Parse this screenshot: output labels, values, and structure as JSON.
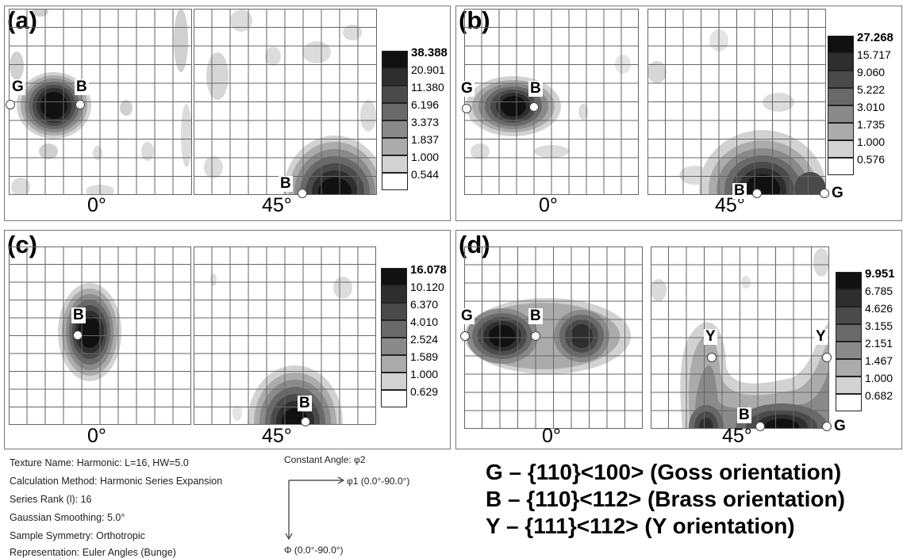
{
  "panels": [
    {
      "label": "(a)",
      "angle_left": "0°",
      "angle_right": "45°",
      "legend": [
        "38.388",
        "20.901",
        "11.380",
        "6.196",
        "3.373",
        "1.837",
        "1.000",
        "0.544"
      ],
      "markers": [
        {
          "text": "G"
        },
        {
          "text": "B"
        },
        {
          "text": "B"
        }
      ]
    },
    {
      "label": "(b)",
      "angle_left": "0°",
      "angle_right": "45°",
      "legend": [
        "27.268",
        "15.717",
        "9.060",
        "5.222",
        "3.010",
        "1.735",
        "1.000",
        "0.576"
      ],
      "markers": [
        {
          "text": "G"
        },
        {
          "text": "B"
        },
        {
          "text": "B"
        },
        {
          "text": "G"
        }
      ]
    },
    {
      "label": "(c)",
      "angle_left": "0°",
      "angle_right": "45°",
      "legend": [
        "16.078",
        "10.120",
        "6.370",
        "4.010",
        "2.524",
        "1.589",
        "1.000",
        "0.629"
      ],
      "markers": [
        {
          "text": "B"
        },
        {
          "text": "B"
        }
      ]
    },
    {
      "label": "(d)",
      "angle_left": "0°",
      "angle_right": "45°",
      "legend": [
        "9.951",
        "6.785",
        "4.626",
        "3.155",
        "2.151",
        "1.467",
        "1.000",
        "0.682"
      ],
      "markers": [
        {
          "text": "G"
        },
        {
          "text": "B"
        },
        {
          "text": "Y"
        },
        {
          "text": "Y"
        },
        {
          "text": "B"
        },
        {
          "text": "G"
        }
      ]
    }
  ],
  "legend_colors": [
    "#111111",
    "#2e2e2e",
    "#4a4a4a",
    "#696969",
    "#8a8a8a",
    "#ababab",
    "#d2d2d2",
    "#ffffff"
  ],
  "info": {
    "texture_name": "Texture Name: Harmonic: L=16, HW=5.0",
    "calculation_method": "Calculation Method: Harmonic Series Expansion",
    "series_rank": "Series Rank (l): 16",
    "gaussian_smoothing": "Gaussian Smoothing: 5.0°",
    "sample_symmetry": "Sample Symmetry: Orthotropic",
    "representation": "Representation: Euler Angles (Bunge)",
    "constant_angle": "Constant Angle: φ2",
    "phi1_axis": "φ1 (0.0°-90.0°)",
    "Phi_axis": "Φ (0.0°-90.0°)"
  },
  "key": {
    "goss": "G – {110}<100> (Goss orientation)",
    "brass": "B – {110}<112> (Brass orientation)",
    "y": "Y – {111}<112> (Y orientation)"
  }
}
